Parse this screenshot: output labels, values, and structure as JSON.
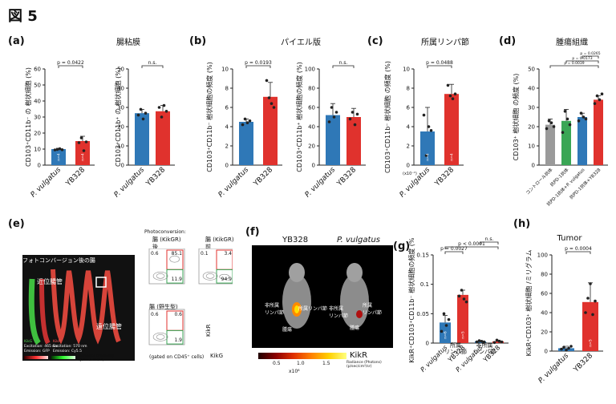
{
  "figure_title": "図 5",
  "colors": {
    "blue": "#2f78b7",
    "red": "#e0322d",
    "green": "#3aa655",
    "gray": "#9a9a9a"
  },
  "panels": {
    "a": {
      "label": "(a)",
      "title": "腸粘膜"
    },
    "b": {
      "label": "(b)",
      "title": "パイエル版"
    },
    "c": {
      "label": "(c)",
      "title": "所属リンパ節"
    },
    "d": {
      "label": "(d)",
      "title": "腫瘍組織"
    },
    "e": {
      "label": "(e)",
      "photoconversion": "Photoconversion:",
      "gut_label": "フォトコンバージョン後の腸",
      "proximal": "近位腸管",
      "distal": "遠位腸管",
      "kikgr_after": "腸 (KikGR)",
      "after": "後",
      "kikgr_before": "腸 (KikGR)",
      "before": "前",
      "wildtype": "腸 (野生型)",
      "gated": "(gated on CD45⁺ cells)",
      "kikr_axis": "KikR",
      "kikg_axis": "KikG",
      "legend_kikg": "KikG",
      "legend_kikg_ex": "Excitation: 465 nm",
      "legend_kikg_em": "Emission: GFP",
      "legend_kikr": "KikR",
      "legend_kikr_ex": "Excitation: 570 nm",
      "legend_kikr_em": "Emission: Cy5.5",
      "legend_radiance": "Radiance (Photons)",
      "legend_radiance_unit": "(p/sec/cm²/sr)",
      "flow": [
        {
          "tl": "0.6",
          "tr": "85.1",
          "br": "11.9"
        },
        {
          "tl": "0.1",
          "tr": "3.4",
          "br": "94.9"
        },
        {
          "tl": "0.6",
          "tr": "0.6",
          "br": "1.9"
        }
      ]
    },
    "f": {
      "label": "(f)",
      "yb328": "YB328",
      "pv": "P. vulgatus",
      "lab1": "所属リンパ節",
      "lab2": "非所属\nリンパ節",
      "lab3": "腫瘍",
      "lab4": "所属\nリンパ節",
      "lab5": "非所属\nリンパ節",
      "lab6": "腫瘍",
      "scale_ticks": [
        "0.5",
        "1.0",
        "1.5"
      ],
      "scale_exp": "x10⁸",
      "scale_label": "KikR",
      "radiance": "Radiance (Photons)",
      "radiance_unit": "(p/sec/cm²/sr)"
    },
    "g": {
      "label": "(g)",
      "group1": "所属\nリンパ節",
      "group2": "非所属\nリンパ節"
    },
    "h": {
      "label": "(h)",
      "title": "Tumor"
    }
  },
  "chart_data": [
    {
      "id": "a1",
      "type": "bar",
      "title": "腸粘膜",
      "ylabel": "CD103⁺CD11b⁻ の 樹状細胞 (%)",
      "ylim": [
        0,
        60
      ],
      "yticks": [
        0,
        10,
        20,
        30,
        40,
        50,
        60
      ],
      "categories": [
        "P. vulgatus",
        "YB328"
      ],
      "values": [
        10,
        15
      ],
      "errors": [
        0.5,
        3
      ],
      "points": [
        [
          9.5,
          9.8,
          10.2,
          9.6
        ],
        [
          14,
          17,
          9,
          14.5
        ]
      ],
      "n": [
        "n=4",
        "n=4"
      ],
      "comparisons": [
        {
          "a": 0,
          "b": 1,
          "text": "p = 0.0422"
        }
      ]
    },
    {
      "id": "a2",
      "type": "bar",
      "title": "",
      "ylabel": "CD103⁺CD11b⁺ の 樹状細胞 (%)",
      "ylim": [
        0,
        50
      ],
      "yticks": [
        0,
        10,
        20,
        30,
        40,
        50
      ],
      "categories": [
        "P. vulgatus",
        "YB328"
      ],
      "values": [
        27,
        28
      ],
      "errors": [
        2,
        3
      ],
      "points": [
        [
          26,
          29,
          24,
          27
        ],
        [
          30,
          25,
          31,
          28
        ]
      ],
      "n": [
        "",
        ""
      ],
      "comparisons": [
        {
          "a": 0,
          "b": 1,
          "text": "n.s."
        }
      ]
    },
    {
      "id": "b1",
      "type": "bar",
      "title": "パイエル版",
      "ylabel": "CD103⁺CD11b⁻ 樹状細胞の頻度 (%)",
      "ylim": [
        0,
        10
      ],
      "yticks": [
        0,
        2,
        4,
        6,
        8,
        10
      ],
      "categories": [
        "P. vulgatus",
        "YB328"
      ],
      "values": [
        4.5,
        7.1
      ],
      "errors": [
        0.3,
        1.5
      ],
      "points": [
        [
          4.2,
          4.8,
          4.4,
          4.6
        ],
        [
          8.8,
          7,
          6.4,
          6.0
        ]
      ],
      "n": [
        "",
        ""
      ],
      "comparisons": [
        {
          "a": 0,
          "b": 1,
          "text": "p = 0.0193"
        }
      ]
    },
    {
      "id": "b2",
      "type": "bar",
      "title": "",
      "ylabel": "CD103⁺CD11b⁺ 樹状細胞の頻度 (%)",
      "ylim": [
        0,
        100
      ],
      "yticks": [
        0,
        20,
        40,
        60,
        80,
        100
      ],
      "categories": [
        "P. vulgatus",
        "YB328"
      ],
      "values": [
        52,
        50
      ],
      "errors": [
        12,
        9
      ],
      "points": [
        [
          45,
          60,
          50,
          55
        ],
        [
          48,
          55,
          42,
          53
        ]
      ],
      "n": [
        "",
        ""
      ],
      "comparisons": [
        {
          "a": 0,
          "b": 1,
          "text": "n.s."
        }
      ]
    },
    {
      "id": "c",
      "type": "bar",
      "title": "所属リンパ節",
      "ylabel": "CD103⁺CD11b⁻ 樹状細胞 の頻度 (%)",
      "ylim": [
        0,
        10
      ],
      "yticks": [
        0,
        2,
        4,
        6,
        8,
        10
      ],
      "categories": [
        "P. vulgatus",
        "YB328"
      ],
      "values": [
        3.5,
        7.4
      ],
      "errors": [
        2.5,
        1.0
      ],
      "points": [
        [
          5.2,
          1.0,
          4.0,
          3.6
        ],
        [
          8.3,
          7.2,
          6.9,
          7.4
        ]
      ],
      "n": [
        "n=4",
        "n=4"
      ],
      "axis_note": "(x10⁻¹)",
      "comparisons": [
        {
          "a": 0,
          "b": 1,
          "text": "p = 0.0488"
        }
      ]
    },
    {
      "id": "d",
      "type": "bar",
      "title": "腫瘍組織",
      "ylabel": "CD103⁺ 樹状細胞 の頻度 (%)",
      "ylim": [
        0,
        50
      ],
      "yticks": [
        0,
        10,
        20,
        30,
        40,
        50
      ],
      "categories": [
        "コントロール抗体",
        "抗PD-1抗体",
        "抗PD-1抗体+P. vulgatus",
        "抗PD-1抗体+YB328"
      ],
      "values": [
        21,
        23,
        25,
        34
      ],
      "errors": [
        3,
        6,
        2,
        2
      ],
      "points": [
        [
          19,
          23,
          22,
          20
        ],
        [
          17,
          28,
          24,
          21
        ],
        [
          23,
          27,
          25,
          24
        ],
        [
          32,
          36,
          34,
          37
        ]
      ],
      "colors": [
        "gray",
        "green",
        "blue",
        "red"
      ],
      "n": [
        "",
        "",
        "",
        ""
      ],
      "comparisons": [
        {
          "a": 0,
          "b": 3,
          "text": "p = 0.0039"
        },
        {
          "a": 1,
          "b": 3,
          "text": "p = 0.0173"
        },
        {
          "a": 2,
          "b": 3,
          "text": "p = 0.0265"
        }
      ]
    },
    {
      "id": "g",
      "type": "bar",
      "title": "",
      "ylabel": "KikR⁺CD103⁺CD11b⁻ 樹状細胞の頻度 (%)",
      "ylim": [
        0,
        0.15
      ],
      "yticks": [
        0,
        0.05,
        0.1,
        0.15
      ],
      "categories": [
        "P. vulgatus",
        "YB328",
        "P. vulgatus",
        "YB328"
      ],
      "values": [
        0.035,
        0.082,
        0.003,
        0.003
      ],
      "errors": [
        0.012,
        0.008,
        0.001,
        0.002
      ],
      "points": [
        [
          0.02,
          0.05,
          0.03,
          0.04
        ],
        [
          0.08,
          0.09,
          0.075,
          0.07
        ],
        [
          0.002,
          0.004,
          0.003,
          0.002
        ],
        [
          0.001,
          0.005,
          0.003,
          0.002
        ]
      ],
      "colors": [
        "blue",
        "red",
        "blue",
        "red"
      ],
      "n": [
        "n=6",
        "n=5",
        "n=6",
        "n=5"
      ],
      "comparisons": [
        {
          "a": 0,
          "b": 1,
          "text": "p = 0.0027"
        },
        {
          "a": 0,
          "b": 3,
          "text": "p < 0.0001"
        },
        {
          "a": 2,
          "b": 3,
          "text": "n.s."
        }
      ]
    },
    {
      "id": "h",
      "type": "bar",
      "title": "Tumor",
      "ylabel": "KikR⁺CD103⁺ 樹状細胞 /ミリグラム",
      "ylim": [
        0,
        100
      ],
      "yticks": [
        0,
        20,
        40,
        60,
        80,
        100
      ],
      "categories": [
        "P. vulgatus",
        "YB328"
      ],
      "values": [
        3,
        51
      ],
      "errors": [
        2,
        20
      ],
      "points": [
        [
          2,
          4,
          1,
          3,
          5
        ],
        [
          40,
          55,
          70,
          38,
          52
        ]
      ],
      "n": [
        "n=5",
        "n=5"
      ],
      "comparisons": [
        {
          "a": 0,
          "b": 1,
          "text": "p = 0.0004"
        }
      ]
    }
  ]
}
